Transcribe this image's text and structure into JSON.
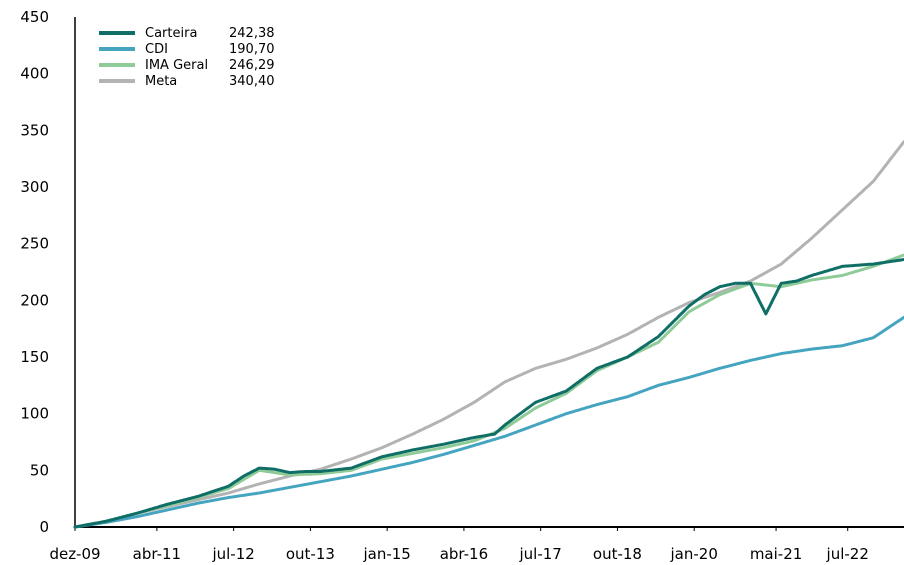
{
  "chart_data": {
    "type": "line",
    "title": "",
    "xlabel": "",
    "ylabel": "",
    "ylim": [
      0,
      450
    ],
    "yticks": [
      0,
      50,
      100,
      150,
      200,
      250,
      300,
      350,
      400,
      450
    ],
    "xlim": [
      "dez-09",
      "jun-23"
    ],
    "xtick_labels": [
      "dez-09",
      "abr-11",
      "jul-12",
      "out-13",
      "jan-15",
      "abr-16",
      "jul-17",
      "out-18",
      "jan-20",
      "mai-21",
      "jul-22"
    ],
    "grid": false,
    "legend_position": "top-left",
    "series": [
      {
        "name": "Carteira",
        "legend_value": "242,38",
        "color": "#0f6e66",
        "points": [
          [
            "dez-09",
            0
          ],
          [
            "jun-10",
            5
          ],
          [
            "dez-10",
            12
          ],
          [
            "jun-11",
            20
          ],
          [
            "dez-11",
            27
          ],
          [
            "jun-12",
            36
          ],
          [
            "set-12",
            45
          ],
          [
            "dez-12",
            52
          ],
          [
            "mar-13",
            51
          ],
          [
            "jun-13",
            48
          ],
          [
            "set-13",
            49
          ],
          [
            "dez-13",
            49
          ],
          [
            "jun-14",
            52
          ],
          [
            "dez-14",
            62
          ],
          [
            "jun-15",
            68
          ],
          [
            "dez-15",
            73
          ],
          [
            "jun-16",
            79
          ],
          [
            "out-16",
            82
          ],
          [
            "dez-16",
            90
          ],
          [
            "jun-17",
            110
          ],
          [
            "dez-17",
            120
          ],
          [
            "jun-18",
            140
          ],
          [
            "dez-18",
            150
          ],
          [
            "jun-19",
            168
          ],
          [
            "dez-19",
            195
          ],
          [
            "mar-20",
            205
          ],
          [
            "jun-20",
            212
          ],
          [
            "set-20",
            215
          ],
          [
            "dez-20",
            215
          ],
          [
            "mar-21",
            188
          ],
          [
            "jun-21",
            215
          ],
          [
            "set-21",
            217
          ],
          [
            "dez-21",
            222
          ],
          [
            "jun-22",
            230
          ],
          [
            "dez-22",
            232
          ],
          [
            "jun-23",
            236
          ]
        ]
      },
      {
        "name": "CDI",
        "legend_value": "190,70",
        "color": "#45a5c0",
        "points": [
          [
            "dez-09",
            0
          ],
          [
            "jun-10",
            4
          ],
          [
            "dez-10",
            9
          ],
          [
            "jun-11",
            15
          ],
          [
            "dez-11",
            21
          ],
          [
            "jun-12",
            26
          ],
          [
            "dez-12",
            30
          ],
          [
            "jun-13",
            35
          ],
          [
            "dez-13",
            40
          ],
          [
            "jun-14",
            45
          ],
          [
            "dez-14",
            51
          ],
          [
            "jun-15",
            57
          ],
          [
            "dez-15",
            64
          ],
          [
            "jun-16",
            72
          ],
          [
            "dez-16",
            80
          ],
          [
            "jun-17",
            90
          ],
          [
            "dez-17",
            100
          ],
          [
            "jun-18",
            108
          ],
          [
            "dez-18",
            115
          ],
          [
            "jun-19",
            125
          ],
          [
            "dez-19",
            132
          ],
          [
            "jun-20",
            140
          ],
          [
            "dez-20",
            147
          ],
          [
            "jun-21",
            153
          ],
          [
            "dez-21",
            157
          ],
          [
            "jun-22",
            160
          ],
          [
            "dez-22",
            167
          ],
          [
            "jun-23",
            185
          ]
        ]
      },
      {
        "name": "IMA Geral",
        "legend_value": "246,29",
        "color": "#8fcb98",
        "points": [
          [
            "dez-09",
            0
          ],
          [
            "jun-10",
            5
          ],
          [
            "dez-10",
            12
          ],
          [
            "jun-11",
            19
          ],
          [
            "dez-11",
            26
          ],
          [
            "jun-12",
            34
          ],
          [
            "dez-12",
            50
          ],
          [
            "jun-13",
            46
          ],
          [
            "dez-13",
            47
          ],
          [
            "jun-14",
            50
          ],
          [
            "dez-14",
            60
          ],
          [
            "jun-15",
            65
          ],
          [
            "dez-15",
            70
          ],
          [
            "jun-16",
            76
          ],
          [
            "dez-16",
            87
          ],
          [
            "jun-17",
            105
          ],
          [
            "dez-17",
            118
          ],
          [
            "jun-18",
            138
          ],
          [
            "dez-18",
            150
          ],
          [
            "jun-19",
            163
          ],
          [
            "dez-19",
            190
          ],
          [
            "jun-20",
            205
          ],
          [
            "dez-20",
            215
          ],
          [
            "jun-21",
            212
          ],
          [
            "dez-21",
            218
          ],
          [
            "jun-22",
            222
          ],
          [
            "dez-22",
            230
          ],
          [
            "jun-23",
            240
          ]
        ]
      },
      {
        "name": "Meta",
        "legend_value": "340,40",
        "color": "#b3b3b3",
        "points": [
          [
            "dez-09",
            0
          ],
          [
            "jun-10",
            5
          ],
          [
            "dez-10",
            12
          ],
          [
            "jun-11",
            18
          ],
          [
            "dez-11",
            24
          ],
          [
            "jun-12",
            30
          ],
          [
            "dez-12",
            38
          ],
          [
            "jun-13",
            45
          ],
          [
            "dez-13",
            51
          ],
          [
            "jun-14",
            60
          ],
          [
            "dez-14",
            70
          ],
          [
            "jun-15",
            82
          ],
          [
            "dez-15",
            95
          ],
          [
            "jun-16",
            110
          ],
          [
            "dez-16",
            128
          ],
          [
            "jun-17",
            140
          ],
          [
            "dez-17",
            148
          ],
          [
            "jun-18",
            158
          ],
          [
            "dez-18",
            170
          ],
          [
            "jun-19",
            185
          ],
          [
            "dez-19",
            198
          ],
          [
            "jun-20",
            207
          ],
          [
            "dez-20",
            217
          ],
          [
            "jun-21",
            232
          ],
          [
            "dez-21",
            255
          ],
          [
            "jun-22",
            280
          ],
          [
            "dez-22",
            305
          ],
          [
            "jun-23",
            340
          ]
        ]
      }
    ]
  }
}
